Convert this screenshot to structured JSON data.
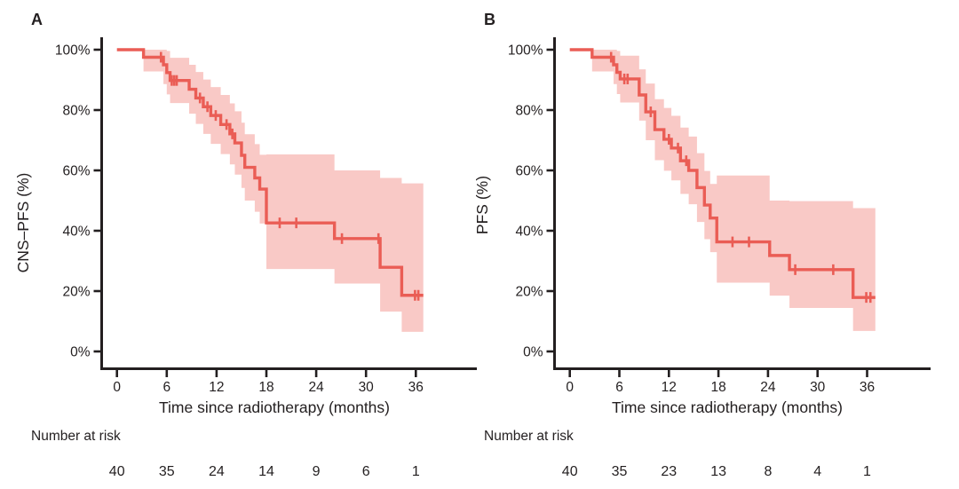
{
  "figure": {
    "background": "#ffffff",
    "text_color": "#231f20",
    "curve_color": "#ea5d55",
    "band_color": "#f9c9c6",
    "panelA": {
      "letter": "A",
      "ylabel": "CNS–PFS (%)",
      "xlabel": "Time since radiotherapy (months)",
      "risk_label": "Number at risk"
    },
    "panelB": {
      "letter": "B",
      "ylabel": "PFS (%)",
      "xlabel": "Time since radiotherapy (months)",
      "risk_label": "Number at risk"
    }
  },
  "chart_data": [
    {
      "type": "line",
      "subtype": "kaplan-meier-step",
      "panel": "A",
      "title": "",
      "xlabel": "Time since radiotherapy (months)",
      "ylabel": "CNS–PFS (%)",
      "xlim": [
        0,
        39
      ],
      "ylim": [
        0,
        100
      ],
      "x_ticks": [
        0,
        6,
        12,
        18,
        24,
        30,
        36
      ],
      "y_tick_values": [
        0,
        20,
        40,
        60,
        80,
        100
      ],
      "y_tick_labels": [
        "0%",
        "20%",
        "40%",
        "60%",
        "80%",
        "100%"
      ],
      "grid": false,
      "legend": "none",
      "end_time": 36.9,
      "steps": [
        {
          "t": 0,
          "s": 100,
          "lo": 100,
          "hi": 100
        },
        {
          "t": 3.2,
          "s": 97.5,
          "lo": 92.8,
          "hi": 100
        },
        {
          "t": 5.6,
          "s": 95.0,
          "lo": 88.6,
          "hi": 100
        },
        {
          "t": 6.0,
          "s": 92.4,
          "lo": 85.2,
          "hi": 99.6
        },
        {
          "t": 6.4,
          "s": 89.8,
          "lo": 82.3,
          "hi": 97.3
        },
        {
          "t": 8.7,
          "s": 86.9,
          "lo": 78.8,
          "hi": 95.0
        },
        {
          "t": 9.5,
          "s": 84.0,
          "lo": 75.4,
          "hi": 92.6
        },
        {
          "t": 10.4,
          "s": 81.1,
          "lo": 72.1,
          "hi": 90.1
        },
        {
          "t": 11.3,
          "s": 78.2,
          "lo": 68.8,
          "hi": 87.6
        },
        {
          "t": 12.5,
          "s": 75.2,
          "lo": 65.4,
          "hi": 85.0
        },
        {
          "t": 13.6,
          "s": 72.1,
          "lo": 62.0,
          "hi": 82.2
        },
        {
          "t": 14.2,
          "s": 69.1,
          "lo": 58.6,
          "hi": 79.6
        },
        {
          "t": 15.0,
          "s": 65.0,
          "lo": 54.2,
          "hi": 75.8
        },
        {
          "t": 15.4,
          "s": 61.0,
          "lo": 50.0,
          "hi": 72.0
        },
        {
          "t": 16.6,
          "s": 57.5,
          "lo": 46.3,
          "hi": 68.7
        },
        {
          "t": 17.2,
          "s": 53.8,
          "lo": 42.4,
          "hi": 65.2
        },
        {
          "t": 18.0,
          "s": 42.6,
          "lo": 27.3,
          "hi": 65.3
        },
        {
          "t": 26.2,
          "s": 37.4,
          "lo": 22.5,
          "hi": 60.0
        },
        {
          "t": 31.7,
          "s": 27.9,
          "lo": 13.2,
          "hi": 57.5
        },
        {
          "t": 34.3,
          "s": 18.6,
          "lo": 6.5,
          "hi": 55.7
        }
      ],
      "censor_times": [
        5.3,
        6.6,
        6.9,
        7.2,
        10.0,
        10.9,
        11.9,
        13.2,
        13.9,
        19.6,
        21.6,
        27.1,
        31.5,
        35.9,
        36.3
      ],
      "number_at_risk": {
        "label": "Number at risk",
        "times": [
          0,
          6,
          12,
          18,
          24,
          30,
          36
        ],
        "counts": [
          40,
          35,
          24,
          14,
          9,
          6,
          1
        ]
      }
    },
    {
      "type": "line",
      "subtype": "kaplan-meier-step",
      "panel": "B",
      "title": "",
      "xlabel": "Time since radiotherapy (months)",
      "ylabel": "PFS (%)",
      "xlim": [
        0,
        39
      ],
      "ylim": [
        0,
        100
      ],
      "x_ticks": [
        0,
        6,
        12,
        18,
        24,
        30,
        36
      ],
      "y_tick_values": [
        0,
        20,
        40,
        60,
        80,
        100
      ],
      "y_tick_labels": [
        "0%",
        "20%",
        "40%",
        "60%",
        "80%",
        "100%"
      ],
      "grid": false,
      "legend": "none",
      "end_time": 37.0,
      "steps": [
        {
          "t": 0,
          "s": 100,
          "lo": 100,
          "hi": 100
        },
        {
          "t": 2.7,
          "s": 97.5,
          "lo": 92.8,
          "hi": 100
        },
        {
          "t": 5.3,
          "s": 95.0,
          "lo": 88.6,
          "hi": 100
        },
        {
          "t": 5.7,
          "s": 92.5,
          "lo": 85.3,
          "hi": 99.6
        },
        {
          "t": 6.1,
          "s": 90.3,
          "lo": 82.5,
          "hi": 98.0
        },
        {
          "t": 8.4,
          "s": 85.0,
          "lo": 76.5,
          "hi": 93.5
        },
        {
          "t": 9.2,
          "s": 79.4,
          "lo": 70.0,
          "hi": 88.8
        },
        {
          "t": 10.3,
          "s": 73.5,
          "lo": 63.4,
          "hi": 83.6
        },
        {
          "t": 11.4,
          "s": 70.3,
          "lo": 59.9,
          "hi": 80.7
        },
        {
          "t": 12.3,
          "s": 67.4,
          "lo": 56.7,
          "hi": 78.1
        },
        {
          "t": 13.4,
          "s": 63.2,
          "lo": 52.2,
          "hi": 74.2
        },
        {
          "t": 14.4,
          "s": 60.0,
          "lo": 48.8,
          "hi": 71.2
        },
        {
          "t": 15.4,
          "s": 54.3,
          "lo": 42.9,
          "hi": 65.7
        },
        {
          "t": 16.3,
          "s": 48.5,
          "lo": 37.2,
          "hi": 59.8
        },
        {
          "t": 17.0,
          "s": 44.2,
          "lo": 32.9,
          "hi": 55.5
        },
        {
          "t": 17.8,
          "s": 36.3,
          "lo": 22.8,
          "hi": 58.3
        },
        {
          "t": 24.2,
          "s": 31.8,
          "lo": 18.5,
          "hi": 50.0
        },
        {
          "t": 26.6,
          "s": 27.1,
          "lo": 14.4,
          "hi": 49.8
        },
        {
          "t": 34.3,
          "s": 17.9,
          "lo": 6.8,
          "hi": 47.5
        }
      ],
      "censor_times": [
        5.0,
        6.6,
        7.0,
        9.8,
        12.0,
        13.1,
        14.1,
        19.7,
        21.7,
        27.3,
        31.9,
        35.9,
        36.4
      ],
      "number_at_risk": {
        "label": "Number at risk",
        "times": [
          0,
          6,
          12,
          18,
          24,
          30,
          36
        ],
        "counts": [
          40,
          35,
          23,
          13,
          8,
          4,
          1
        ]
      }
    }
  ]
}
